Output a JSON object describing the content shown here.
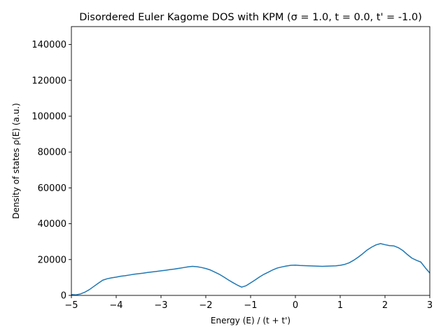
{
  "chart_data": {
    "type": "line",
    "title": "Disordered Euler Kagome DOS with KPM (σ = 1.0, t = 0.0, t' = -1.0)",
    "xlabel": "Energy (E) / (t + t')",
    "ylabel": "Density of states ρ(E) (a.u.)",
    "xlim": [
      -5,
      3
    ],
    "ylim": [
      0,
      150000
    ],
    "xticks": [
      -5,
      -4,
      -3,
      -2,
      -1,
      0,
      1,
      2,
      3
    ],
    "xtick_labels": [
      "−5",
      "−4",
      "−3",
      "−2",
      "−1",
      "0",
      "1",
      "2",
      "3"
    ],
    "yticks": [
      0,
      20000,
      40000,
      60000,
      80000,
      100000,
      120000,
      140000
    ],
    "ytick_labels": [
      "0",
      "20000",
      "40000",
      "60000",
      "80000",
      "100000",
      "120000",
      "140000"
    ],
    "grid": false,
    "line_color": "#1f77b4",
    "series": [
      {
        "x": [
          -5.0,
          -4.9,
          -4.8,
          -4.7,
          -4.6,
          -4.5,
          -4.4,
          -4.3,
          -4.2,
          -4.1,
          -4.0,
          -3.9,
          -3.8,
          -3.7,
          -3.6,
          -3.5,
          -3.4,
          -3.3,
          -3.2,
          -3.1,
          -3.0,
          -2.9,
          -2.8,
          -2.7,
          -2.6,
          -2.5,
          -2.4,
          -2.3,
          -2.2,
          -2.1,
          -2.0,
          -1.9,
          -1.8,
          -1.7,
          -1.6,
          -1.5,
          -1.4,
          -1.3,
          -1.2,
          -1.1,
          -1.0,
          -0.9,
          -0.8,
          -0.7,
          -0.6,
          -0.5,
          -0.4,
          -0.3,
          -0.2,
          -0.1,
          0.0,
          0.1,
          0.2,
          0.3,
          0.4,
          0.5,
          0.6,
          0.7,
          0.8,
          0.9,
          1.0,
          1.1,
          1.2,
          1.3,
          1.4,
          1.5,
          1.6,
          1.7,
          1.8,
          1.9,
          2.0,
          2.1,
          2.2,
          2.3,
          2.4,
          2.5,
          2.6,
          2.7,
          2.8,
          2.9,
          3.0
        ],
        "values": [
          500,
          300,
          800,
          1800,
          3200,
          5000,
          6800,
          8500,
          9300,
          9800,
          10200,
          10700,
          11000,
          11400,
          11800,
          12100,
          12400,
          12800,
          13100,
          13400,
          13700,
          14000,
          14400,
          14700,
          15100,
          15500,
          15900,
          16200,
          16000,
          15600,
          15000,
          14200,
          13000,
          11800,
          10300,
          8700,
          7200,
          5800,
          4600,
          5400,
          7000,
          8600,
          10300,
          11800,
          13000,
          14300,
          15300,
          15900,
          16400,
          16800,
          16900,
          16700,
          16600,
          16500,
          16400,
          16300,
          16200,
          16300,
          16400,
          16500,
          16800,
          17300,
          18200,
          19600,
          21300,
          23200,
          25300,
          26900,
          28200,
          28900,
          28300,
          27800,
          27600,
          26600,
          25000,
          22800,
          20800,
          19600,
          18600,
          15400,
          12500
        ]
      }
    ]
  }
}
